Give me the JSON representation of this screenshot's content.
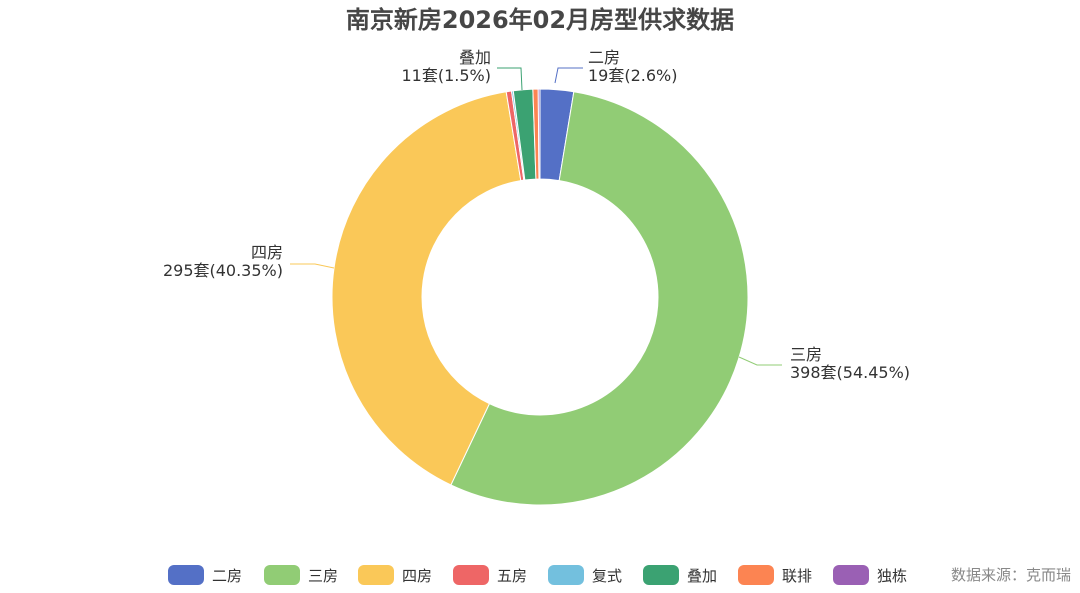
{
  "chart_data": {
    "type": "pie",
    "title": "南京新房2026年02月房型供求数据",
    "source_note": "数据来源：克而瑞",
    "slices": [
      {
        "name": "二房",
        "value": 19,
        "label": "19套(2.6%)",
        "color": "#5470c6"
      },
      {
        "name": "三房",
        "value": 398,
        "label": "398套(54.45%)",
        "color": "#91cc75"
      },
      {
        "name": "四房",
        "value": 295,
        "label": "295套(40.35%)",
        "color": "#fac858"
      },
      {
        "name": "五房",
        "value": 3,
        "label": "",
        "color": "#ee6666"
      },
      {
        "name": "复式",
        "value": 1,
        "label": "",
        "color": "#73c0de"
      },
      {
        "name": "叠加",
        "value": 11,
        "label": "11套(1.5%)",
        "color": "#3ba272"
      },
      {
        "name": "联排",
        "value": 3,
        "label": "",
        "color": "#fc8452"
      },
      {
        "name": "独栋",
        "value": 1,
        "label": "",
        "color": "#9a60b4"
      }
    ],
    "legend_placement": "bottom"
  }
}
